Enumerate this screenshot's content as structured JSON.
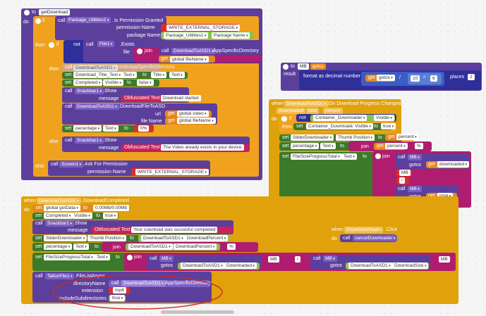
{
  "get_download": {
    "header_to": "to",
    "name": "getDownload",
    "do": "do",
    "if": "if",
    "then": "then",
    "else": "else",
    "call": "call",
    "not": "not",
    "package_utilities": "Package_Utilities1",
    "is_permission_granted": ".Is Permission Granted",
    "permission_name": "permission Name",
    "write_ext": "WRITE_EXTERNAL_STORAGE",
    "package_name_label": "package Name",
    "package_name_value": "Package_Utilities1",
    "package_name_prop": "Package Name",
    "file1": "File1",
    "exists": ".Exists",
    "file_label": "file",
    "join": "join",
    "download_to_asd1": "DownloadToASD1",
    "app_specific_dir": ".AppSpecificDirectory",
    "get": "get",
    "global_filename": "global fileName",
    "create_app_specific_dir": ".CreateAppSpecificDirectory",
    "set": "set",
    "download_title_text": "Download_Title_Text",
    "text": "Text",
    "to": "to",
    "title": "Title",
    "completed": "Completed",
    "visible": "Visible",
    "false": "false",
    "snackbar1": "Snackbar1",
    "show": ".Show",
    "message": "message",
    "obfuscated_text": "Obfuscated Text",
    "download_started": "Download started",
    "download_file_to_asd": ".DownloadFileToASD",
    "url": "url",
    "global_video": "global video",
    "file_name": "file Name",
    "percentage": "pecentage",
    "zero_percent": "0%",
    "video_exists": "The Video aready exists in your device",
    "screen1": "Screen1",
    "ask_for_permission": ".Ask For Permission",
    "permission_name2": "permission Name",
    "write_ext2": "WRITE_EXTERNAL_STORAGE"
  },
  "mb_proc": {
    "to": "to",
    "name": "MB",
    "param": "gotos",
    "result": "result",
    "format_decimal": "format as decimal number",
    "get": "get",
    "gotos": "gotos",
    "div": "/",
    "ten": "10",
    "caret": "^",
    "six": "6",
    "places": "places",
    "two": "2"
  },
  "on_progress": {
    "when": "when",
    "component": "DownloadToASD1",
    "event": ".On Download Progress Changed",
    "params": [
      "downloaded",
      "total",
      "percent"
    ],
    "do": "do",
    "if": "if",
    "not": "not",
    "container": "Container_Downloader",
    "visible": "Visible",
    "then": "then",
    "set": "set",
    "to": "to",
    "true": "true",
    "slider": "SliderDownloader",
    "thumb_position": "Thumb Position",
    "get": "get",
    "percent": "percent",
    "percentage": "pecentage",
    "text": "Text",
    "join": "join",
    "pct_sign": "%",
    "fsp_total": "FileSizeProgressTotal",
    "call": "call",
    "mb": "MB",
    "gotos": "gotos",
    "downloaded": "downloaded",
    "mb_str": "MB",
    "slash": "/",
    "total": "total",
    "mb_str2": "MB"
  },
  "on_completed": {
    "when": "when",
    "component": "DownloadToASD1",
    "event": ".DownloadCompleted",
    "do": "do",
    "set": "set",
    "global_gotdata": "global gotData",
    "to": "to",
    "zero_mb": "0.00Mb/0.00Mb",
    "completed": "Completed",
    "visible": "Visible",
    "true": "true",
    "call": "call",
    "snackbar1": "Snackbar1",
    "show": ".Show",
    "message": "message",
    "obfuscated_text": "Obfuscated Text",
    "download_success": "Your cownload was succesful completed",
    "slider": "SliderDownloader",
    "thumb_position": "Thumb Position",
    "download_percent": "DownloadPercent",
    "percentage": "pecentage",
    "text": "Text",
    "join": "join",
    "pct_sign": "%",
    "fsp_total": "FileSizeProgressTotal",
    "mb": "MB",
    "gotos": "gotos",
    "downloaded": "Downloaded",
    "mb_str": "MB",
    "slash": "/",
    "download_size": "DownloadSize",
    "mb_str2": "MB",
    "taifun": "TaifunFile1",
    "file_list_async": ".FileListAsync",
    "directory_name": "directoryName",
    "app_specific_dir": ".AppSpecificDirectory",
    "extension": "extension",
    "mp4": "mp4",
    "include_subdirs": "includeSubdirectories",
    "true2": "true"
  },
  "close_download": {
    "when": "when",
    "component": "CloseDownload",
    "event": ".Click",
    "do": "do",
    "call": "call",
    "proc": "cancelDownloader"
  }
}
